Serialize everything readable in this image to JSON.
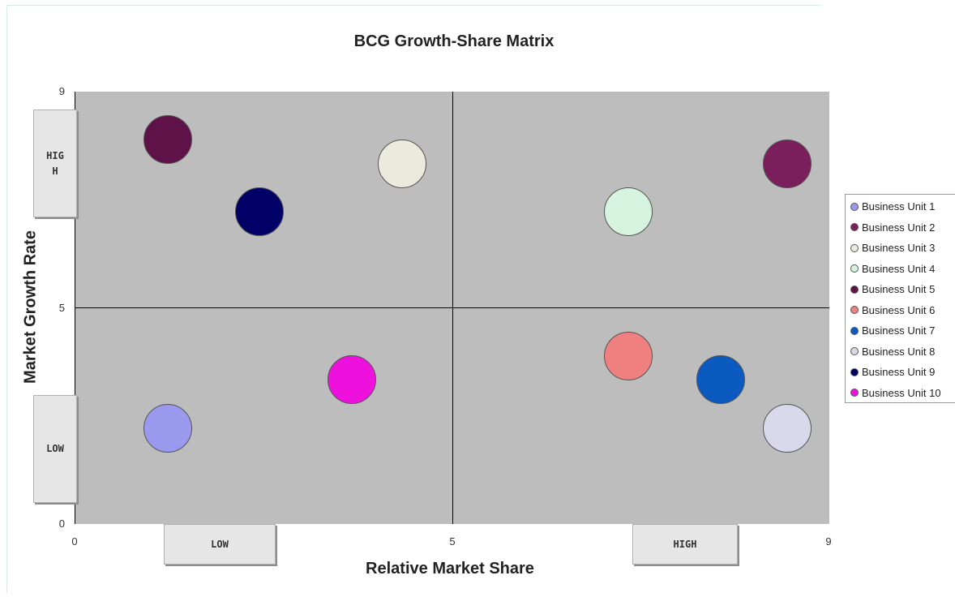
{
  "chart_data": {
    "type": "scatter",
    "title": "BCG Growth-Share Matrix",
    "xlabel": "Relative Market Share",
    "ylabel": "Market Growth Rate",
    "xlim": [
      0,
      9
    ],
    "ylim": [
      0,
      9
    ],
    "x_ticks": [
      "0",
      "5",
      "9"
    ],
    "y_ticks": [
      "0",
      "5",
      "9"
    ],
    "quadrant_dividers": {
      "x": 5,
      "y": 5
    },
    "grid": false,
    "legend_position": "right",
    "quadrant_labels": {
      "y_high": "HIGH",
      "y_low": "LOW",
      "x_low": "LOW",
      "x_high": "HIGH"
    },
    "series": [
      {
        "name": "Business Unit 1",
        "x": 1.1,
        "y": 2.0,
        "color": "#9999ee"
      },
      {
        "name": "Business Unit 2",
        "x": 8.5,
        "y": 7.5,
        "color": "#7a1f5c"
      },
      {
        "name": "Business Unit 3",
        "x": 3.9,
        "y": 7.5,
        "color": "#ebebdd"
      },
      {
        "name": "Business Unit 4",
        "x": 6.6,
        "y": 6.5,
        "color": "#d6f3df"
      },
      {
        "name": "Business Unit 5",
        "x": 1.1,
        "y": 8.0,
        "color": "#5e1248"
      },
      {
        "name": "Business Unit 6",
        "x": 6.6,
        "y": 3.5,
        "color": "#f08080"
      },
      {
        "name": "Business Unit 7",
        "x": 7.7,
        "y": 3.0,
        "color": "#0a5ac0"
      },
      {
        "name": "Business Unit 8",
        "x": 8.5,
        "y": 2.0,
        "color": "#d9d8ea"
      },
      {
        "name": "Business Unit 9",
        "x": 2.2,
        "y": 6.5,
        "color": "#000066"
      },
      {
        "name": "Business Unit 10",
        "x": 3.3,
        "y": 3.0,
        "color": "#ee11dd"
      }
    ]
  }
}
